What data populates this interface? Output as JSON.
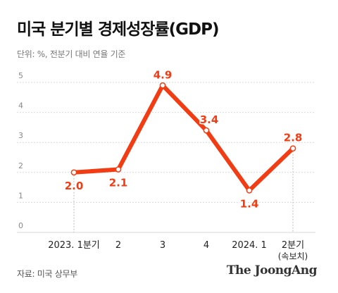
{
  "header": {
    "title": "미국 분기별 경제성장률(GDP)",
    "subtitle": "단위: %, 전분기 대비 연율 기준"
  },
  "footer": {
    "source": "자료: 미국 상무부",
    "brand": "The JoongAng"
  },
  "colors": {
    "line": "#f23c13",
    "label": "#f23c13",
    "grid": "#d9d9d9",
    "marker_fill": "#ffffff"
  },
  "chart_data": {
    "type": "line",
    "title": "미국 분기별 경제성장률(GDP)",
    "subtitle": "단위: %, 전분기 대비 연율 기준",
    "categories": [
      "2023. 1분기",
      "2",
      "3",
      "4",
      "2024. 1",
      "2분기"
    ],
    "category_sublabels": [
      "",
      "",
      "",
      "",
      "",
      "(속보치)"
    ],
    "values": [
      2.0,
      2.1,
      4.9,
      3.4,
      1.4,
      2.8
    ],
    "value_labels": [
      "2.0",
      "2.1",
      "4.9",
      "3.4",
      "1.4",
      "2.8"
    ],
    "yticks": [
      "0",
      "1",
      "2",
      "3",
      "4",
      "5"
    ],
    "ylim": [
      0,
      5
    ],
    "grid": true,
    "legend": "none"
  }
}
